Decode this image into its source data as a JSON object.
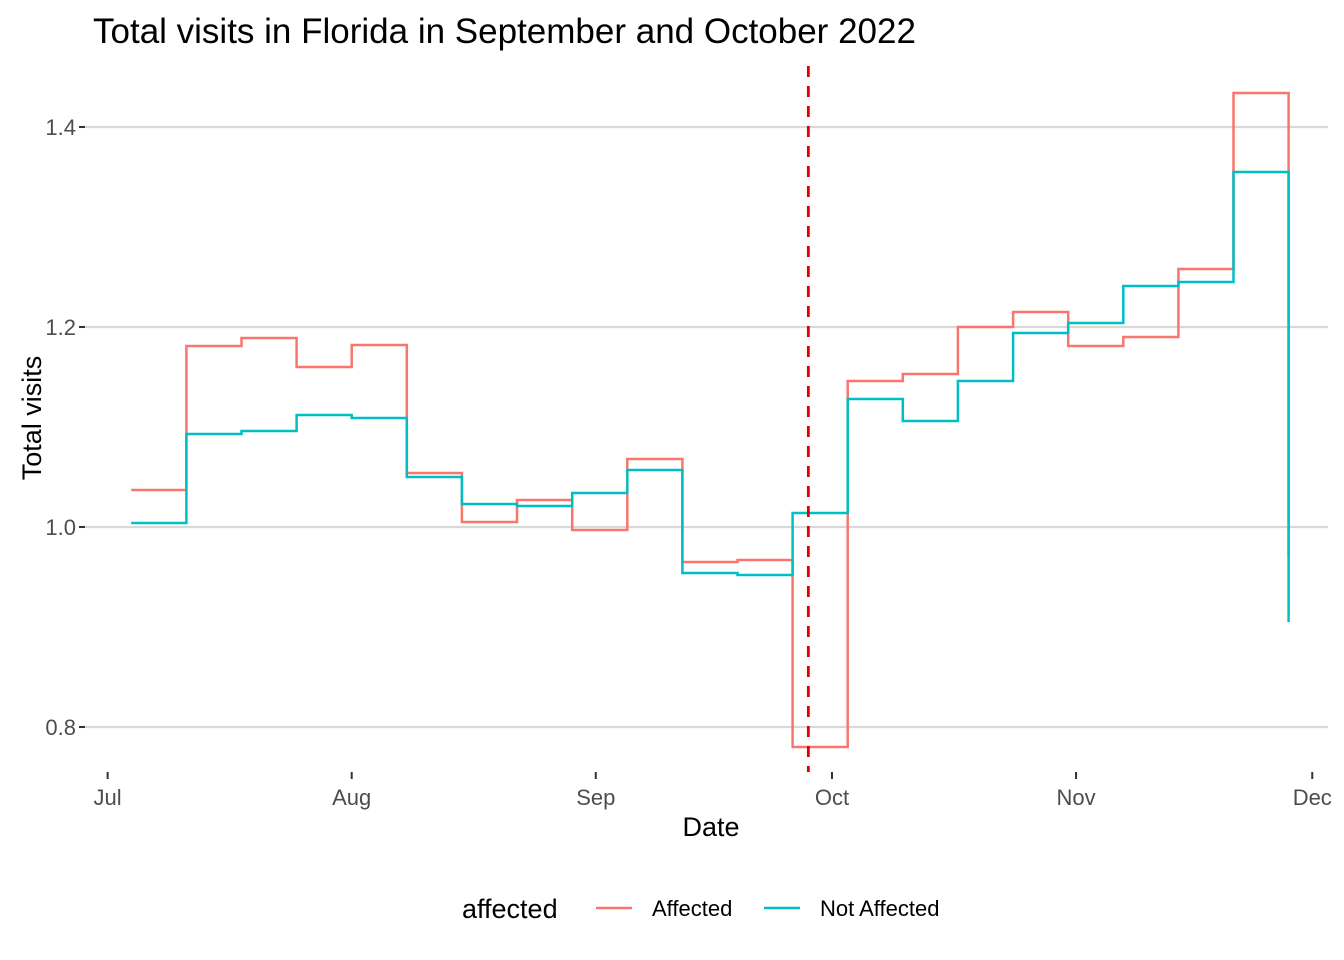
{
  "chart_data": {
    "type": "line",
    "step": true,
    "title": "Total visits in Florida in September and October 2022",
    "xlabel": "Date",
    "ylabel": "Total visits",
    "x_ticks": [
      "Jul",
      "Aug",
      "Sep",
      "Oct",
      "Nov",
      "Dec"
    ],
    "x_tick_dates": [
      "2022-07-01",
      "2022-08-01",
      "2022-09-01",
      "2022-10-01",
      "2022-11-01",
      "2022-12-01"
    ],
    "y_ticks": [
      "0.8",
      "1.0",
      "1.2",
      "1.4"
    ],
    "y_tick_values": [
      0.8,
      1.0,
      1.2,
      1.4
    ],
    "xlim": [
      "2022-06-28",
      "2022-12-03"
    ],
    "ylim": [
      0.755,
      1.465
    ],
    "grid": true,
    "reference_line": {
      "date": "2022-09-28",
      "color": "#e00000",
      "style": "dashed"
    },
    "legend": {
      "title": "affected",
      "position": "bottom"
    },
    "dates": [
      "2022-07-04",
      "2022-07-11",
      "2022-07-18",
      "2022-07-25",
      "2022-08-01",
      "2022-08-08",
      "2022-08-15",
      "2022-08-22",
      "2022-08-29",
      "2022-09-05",
      "2022-09-12",
      "2022-09-19",
      "2022-09-26",
      "2022-10-03",
      "2022-10-10",
      "2022-10-17",
      "2022-10-24",
      "2022-10-31",
      "2022-11-07",
      "2022-11-14",
      "2022-11-21",
      "2022-11-28"
    ],
    "series": [
      {
        "name": "Affected",
        "color": "#F8766D",
        "values": [
          1.037,
          1.181,
          1.189,
          1.16,
          1.182,
          1.054,
          1.005,
          1.027,
          0.997,
          1.068,
          0.965,
          0.967,
          0.78,
          1.146,
          1.153,
          1.2,
          1.215,
          1.181,
          1.19,
          1.258,
          1.434,
          0.97
        ]
      },
      {
        "name": "Not Affected",
        "color": "#00BFC4",
        "values": [
          1.004,
          1.093,
          1.096,
          1.112,
          1.109,
          1.05,
          1.023,
          1.021,
          1.034,
          1.057,
          0.954,
          0.952,
          1.014,
          1.128,
          1.106,
          1.146,
          1.194,
          1.204,
          1.241,
          1.245,
          1.355,
          0.905
        ]
      }
    ]
  }
}
